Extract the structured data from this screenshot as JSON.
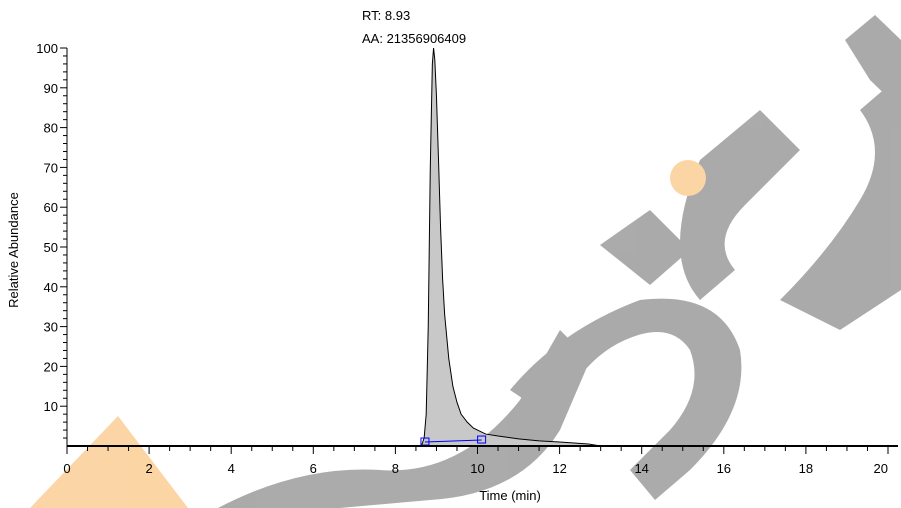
{
  "chart_data": {
    "type": "line",
    "title": "",
    "xlabel": "Time (min)",
    "ylabel": "Relative Abundance",
    "xlim": [
      0,
      20
    ],
    "ylim": [
      0,
      100
    ],
    "x_ticks": [
      0,
      2,
      4,
      6,
      8,
      10,
      12,
      14,
      16,
      18,
      20
    ],
    "y_ticks": [
      10,
      20,
      30,
      40,
      50,
      60,
      70,
      80,
      90,
      100
    ],
    "grid": false,
    "legend": "none",
    "fill_under_curve": true,
    "fill_color": "#c8c8c8",
    "line_color": "#000000",
    "baseline_color": "#0000ff",
    "series": [
      {
        "x": [
          0,
          8.6,
          8.65,
          8.7,
          8.75,
          8.8,
          8.85,
          8.9,
          8.93,
          8.96,
          9.0,
          9.05,
          9.1,
          9.15,
          9.2,
          9.3,
          9.4,
          9.5,
          9.6,
          9.75,
          9.9,
          10.0,
          10.2,
          10.5,
          11.0,
          11.5,
          12.0,
          12.7,
          13.0,
          20
        ],
        "y": [
          0,
          0,
          0.5,
          2,
          8,
          30,
          70,
          96,
          100,
          97,
          88,
          72,
          55,
          42,
          33,
          22,
          15,
          11,
          8,
          6,
          4.5,
          4,
          3,
          2.5,
          1.8,
          1.3,
          1,
          0.5,
          0,
          0
        ]
      }
    ],
    "integration_baseline": {
      "start": [
        8.72,
        1.0
      ],
      "end": [
        10.1,
        1.5
      ]
    },
    "annotations": {
      "rt": "RT: 8.93",
      "aa": "AA: 21356906409"
    },
    "peak_rt": 8.93
  },
  "watermark": {
    "colors": {
      "gray": "#a6a6a6",
      "orange": "#fbd3a0"
    }
  }
}
